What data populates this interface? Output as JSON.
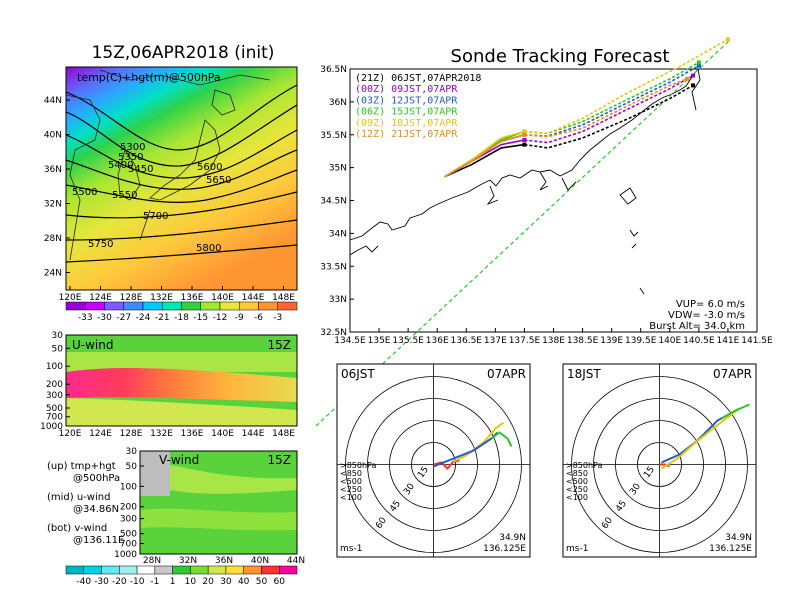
{
  "titles": {
    "main": "15Z,06APR2018 (init)",
    "track": "Sonde Tracking Forecast"
  },
  "temp_panel": {
    "label": "temp(C)+hgt(m)@500hPa",
    "lat_ticks": [
      "44N",
      "40N",
      "36N",
      "32N",
      "28N",
      "24N"
    ],
    "lon_ticks": [
      "120E",
      "124E",
      "128E",
      "132E",
      "136E",
      "140E",
      "144E",
      "148E"
    ],
    "contour_labels": [
      "5300",
      "5350",
      "5400",
      "5450",
      "5500",
      "5550",
      "5600",
      "5650",
      "5700",
      "5750",
      "5800"
    ],
    "colorbar_labels": [
      "-33",
      "-30",
      "-27",
      "-24",
      "-21",
      "-18",
      "-15",
      "-12",
      "-9",
      "-6",
      "-3"
    ],
    "colorbar_colors": [
      "#9b00d2",
      "#c800ff",
      "#7a5cff",
      "#3c8cff",
      "#00c8ff",
      "#00e6b4",
      "#33d23c",
      "#a0e632",
      "#e6e63c",
      "#ffc83c",
      "#ff9632",
      "#ff6432"
    ]
  },
  "u_panel": {
    "label": "U-wind",
    "time": "15Z",
    "y_ticks": [
      "30",
      "50",
      "100",
      "200",
      "300",
      "500",
      "700",
      "1000"
    ],
    "x_ticks": [
      "120E",
      "124E",
      "128E",
      "132E",
      "136E",
      "140E",
      "144E",
      "148E"
    ]
  },
  "v_panel": {
    "label": "V-wind",
    "time": "15Z",
    "y_ticks": [
      "30",
      "50",
      "100",
      "200",
      "300",
      "500",
      "700",
      "1000"
    ],
    "x_ticks": [
      "28N",
      "32N",
      "36N",
      "40N",
      "44N"
    ]
  },
  "wind_colorbar": {
    "labels": [
      "-40",
      "-30",
      "-20",
      "-10",
      "-1",
      "1",
      "10",
      "20",
      "30",
      "40",
      "50",
      "60"
    ],
    "colors": [
      "#00b4c8",
      "#00d2e6",
      "#64e6f0",
      "#a0f0f0",
      "#ffffff",
      "#c8c8c8",
      "#32c832",
      "#78dc3c",
      "#d2e650",
      "#ffdc3c",
      "#ff9632",
      "#ff3232",
      "#ff00a0"
    ]
  },
  "legend_text": {
    "up": "(up) tmp+hgt",
    "up2": "@500hPa",
    "mid": "(mid) u-wind",
    "mid2": "@34.86N",
    "bot": "(bot) v-wind",
    "bot2": "@136.11E"
  },
  "track_panel": {
    "lat_ticks": [
      "36.5N",
      "36N",
      "35.5N",
      "35N",
      "34.5N",
      "34N",
      "33.5N",
      "33N",
      "32.5N"
    ],
    "lon_ticks": [
      "134.5E",
      "135E",
      "135.5E",
      "136E",
      "136.5E",
      "137E",
      "137.5E",
      "138E",
      "138.5E",
      "139E",
      "139.5E",
      "140E",
      "140.5E",
      "141E",
      "141.5E"
    ],
    "params": {
      "vup": "VUP= 6.0 m/s",
      "vdw": "VDW= -3.0 m/s",
      "burst": "Burst Alt= 34.0 km"
    },
    "launch": {
      "lat": 34.86,
      "lon": 136.125
    }
  },
  "chart_data": [
    {
      "type": "line",
      "title": "Sonde Tracking Forecast",
      "xlim": [
        134.5,
        141.5
      ],
      "ylim": [
        32.5,
        36.5
      ],
      "xlabel": "",
      "ylabel": "",
      "series": [
        {
          "name": "(21Z) 06JST,07APR2018",
          "color": "#000000",
          "points": [
            [
              136.125,
              34.86
            ],
            [
              136.6,
              35.05
            ],
            [
              137.1,
              35.3
            ],
            [
              137.5,
              35.35
            ],
            [
              137.9,
              35.3
            ],
            [
              138.5,
              35.45
            ],
            [
              139.3,
              35.75
            ],
            [
              140.0,
              36.05
            ],
            [
              140.4,
              36.25
            ]
          ]
        },
        {
          "name": "(00Z) 09JST,07APR",
          "color": "#a000c8",
          "points": [
            [
              136.125,
              34.86
            ],
            [
              136.6,
              35.1
            ],
            [
              137.1,
              35.35
            ],
            [
              137.5,
              35.42
            ],
            [
              137.9,
              35.38
            ],
            [
              138.5,
              35.55
            ],
            [
              139.3,
              35.9
            ],
            [
              140.0,
              36.2
            ],
            [
              140.4,
              36.4
            ]
          ]
        },
        {
          "name": "(03Z) 12JST,07APR",
          "color": "#1e5ad2",
          "points": [
            [
              136.125,
              34.86
            ],
            [
              136.6,
              35.12
            ],
            [
              137.1,
              35.4
            ],
            [
              137.5,
              35.5
            ],
            [
              137.9,
              35.48
            ],
            [
              138.5,
              35.65
            ],
            [
              139.3,
              36.0
            ],
            [
              140.0,
              36.3
            ],
            [
              140.5,
              36.55
            ]
          ]
        },
        {
          "name": "(06Z) 15JST,07APR",
          "color": "#28c828",
          "points": [
            [
              136.125,
              34.86
            ],
            [
              136.6,
              35.12
            ],
            [
              137.1,
              35.42
            ],
            [
              137.5,
              35.55
            ],
            [
              137.9,
              35.52
            ],
            [
              138.5,
              35.7
            ],
            [
              139.3,
              36.05
            ],
            [
              140.0,
              36.35
            ],
            [
              140.5,
              36.6
            ]
          ]
        },
        {
          "name": "(09Z) 18JST,07APR",
          "color": "#e6c800",
          "points": [
            [
              136.125,
              34.86
            ],
            [
              136.6,
              35.12
            ],
            [
              137.1,
              35.45
            ],
            [
              137.5,
              35.55
            ],
            [
              137.9,
              35.52
            ],
            [
              138.5,
              35.75
            ],
            [
              139.3,
              36.15
            ],
            [
              140.2,
              36.55
            ],
            [
              141.0,
              36.95
            ]
          ]
        },
        {
          "name": "(12Z) 21JST,07APR",
          "color": "#e68c1e",
          "points": [
            [
              136.125,
              34.86
            ],
            [
              136.6,
              35.1
            ],
            [
              137.1,
              35.4
            ],
            [
              137.5,
              35.5
            ],
            [
              137.9,
              35.47
            ],
            [
              138.5,
              35.6
            ],
            [
              139.3,
              35.95
            ],
            [
              140.0,
              36.25
            ],
            [
              140.3,
              36.35
            ]
          ]
        }
      ]
    }
  ],
  "polar_left": {
    "time": "06JST",
    "date": "07APR",
    "legend": [
      ">850hPa",
      "<850",
      "<500",
      "<250",
      "<100"
    ],
    "ring_labels": [
      "15",
      "30",
      "45",
      "60"
    ],
    "unit": "ms-1",
    "lat": "34.9N",
    "lon": "136.125E"
  },
  "polar_right": {
    "time": "18JST",
    "date": "07APR",
    "legend": [
      ">850hPa",
      "<850",
      "<500",
      "<250",
      "<100"
    ],
    "ring_labels": [
      "15",
      "30",
      "45",
      "60"
    ],
    "unit": "ms-1",
    "lat": "34.9N",
    "lon": "136.125E"
  },
  "legend_colors": [
    "#ff3232",
    "#ff9632",
    "#32c832",
    "#00b4e6",
    "#1e5ad2"
  ]
}
